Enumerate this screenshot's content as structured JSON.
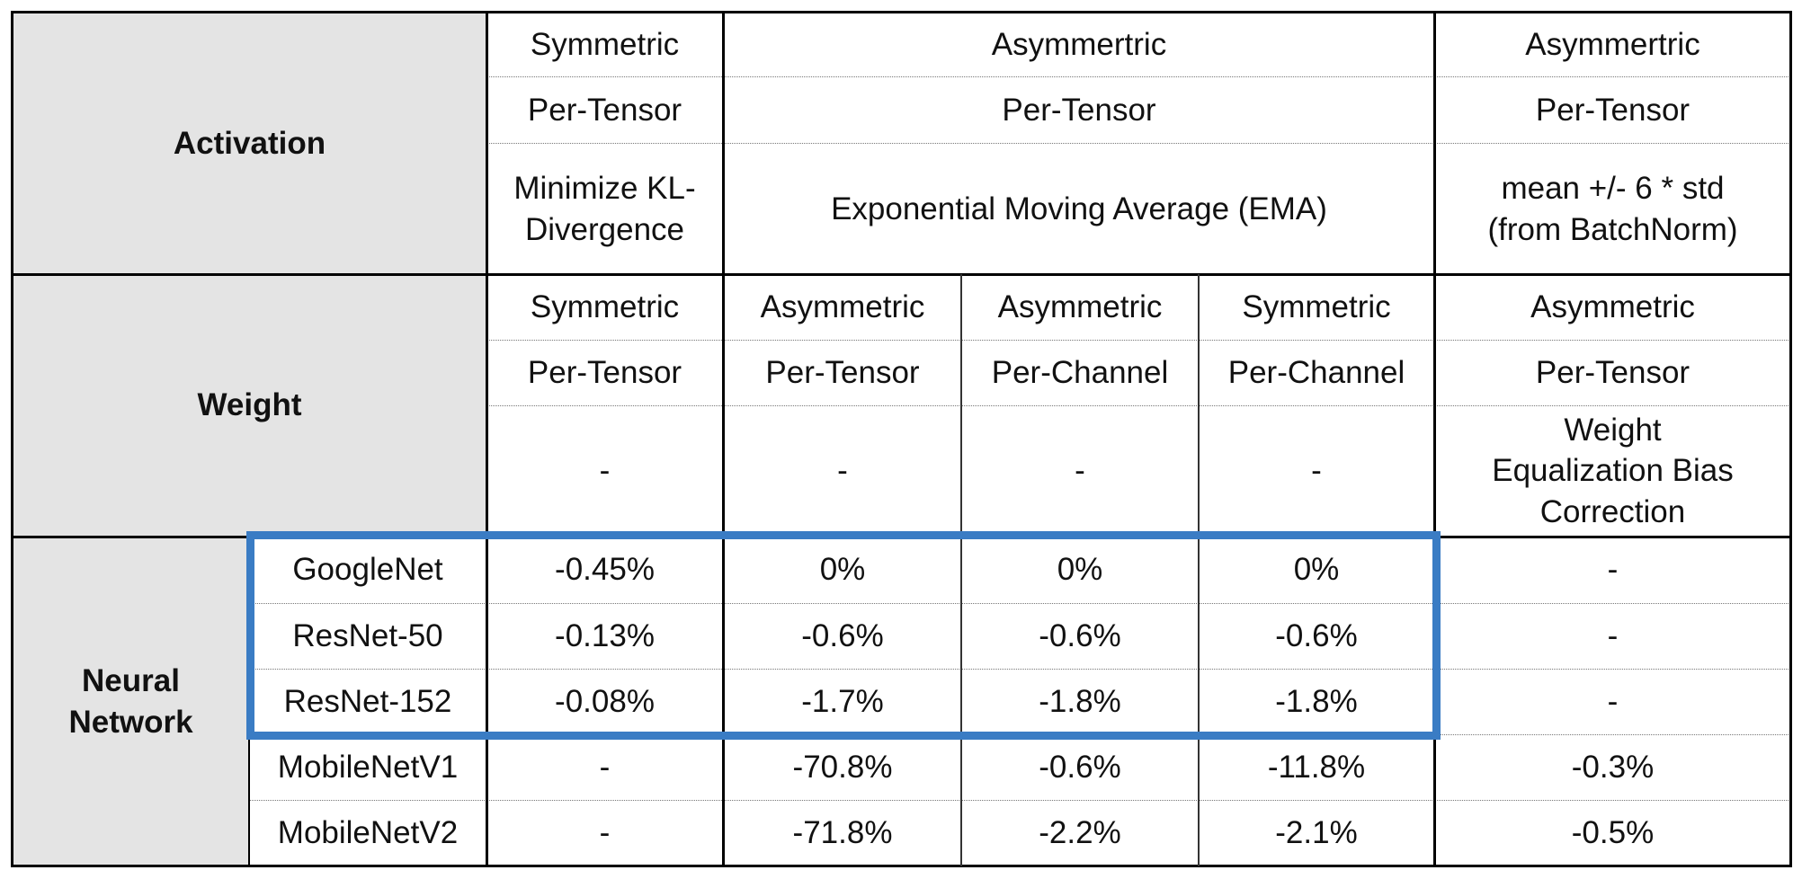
{
  "activation": {
    "label": "Activation",
    "sym_type": "Symmetric",
    "sym_granularity": "Per-Tensor",
    "sym_method": "Minimize KL-Divergence",
    "ema_type": "Asymmertric",
    "ema_granularity": "Per-Tensor",
    "ema_method": "Exponential Moving Average (EMA)",
    "bn_type": "Asymmertric",
    "bn_granularity": "Per-Tensor",
    "bn_method": "mean +/- 6 * std (from BatchNorm)"
  },
  "weight": {
    "label": "Weight",
    "columns": [
      {
        "type": "Symmetric",
        "granularity": "Per-Tensor",
        "technique": "-"
      },
      {
        "type": "Asymmetric",
        "granularity": "Per-Tensor",
        "technique": "-"
      },
      {
        "type": "Asymmetric",
        "granularity": "Per-Channel",
        "technique": "-"
      },
      {
        "type": "Symmetric",
        "granularity": "Per-Channel",
        "technique": "-"
      },
      {
        "type": "Asymmetric",
        "granularity": "Per-Tensor",
        "technique": "Weight Equalization Bias Correction"
      }
    ]
  },
  "network": {
    "label": "Neural Network",
    "rows": [
      {
        "name": "GoogleNet",
        "values": [
          "-0.45%",
          "0%",
          "0%",
          "0%",
          "-"
        ]
      },
      {
        "name": "ResNet-50",
        "values": [
          "-0.13%",
          "-0.6%",
          "-0.6%",
          "-0.6%",
          "-"
        ]
      },
      {
        "name": "ResNet-152",
        "values": [
          "-0.08%",
          "-1.7%",
          "-1.8%",
          "-1.8%",
          "-"
        ]
      },
      {
        "name": "MobileNetV1",
        "values": [
          "-",
          "-70.8%",
          "-0.6%",
          "-11.8%",
          "-0.3%"
        ]
      },
      {
        "name": "MobileNetV2",
        "values": [
          "-",
          "-71.8%",
          "-2.2%",
          "-2.1%",
          "-0.5%"
        ]
      }
    ]
  },
  "colors": {
    "header_fill": "#e4e4e4",
    "highlight_border": "#3a7cc4"
  }
}
